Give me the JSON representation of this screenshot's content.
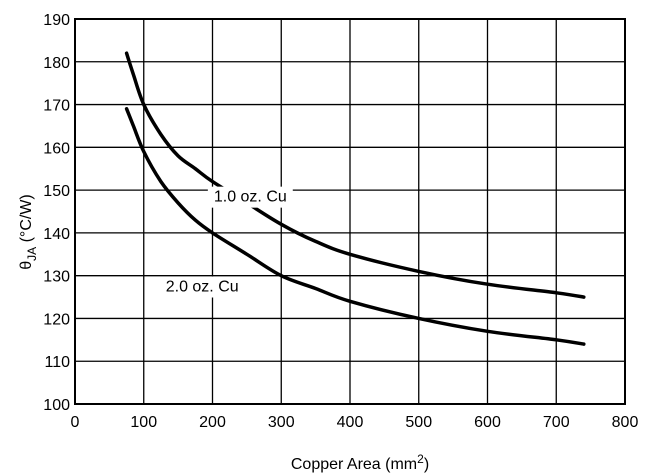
{
  "chart_data": {
    "type": "line",
    "xlabel": "Copper Area (mm",
    "xlabel_sup": "2",
    "xlabel_end": ")",
    "ylabel": "θ",
    "ylabel_sub": "JA",
    "ylabel_end": " (°C/W)",
    "xlim": [
      0,
      800
    ],
    "ylim": [
      100,
      190
    ],
    "xticks": [
      0,
      100,
      200,
      300,
      400,
      500,
      600,
      700,
      800
    ],
    "yticks": [
      100,
      110,
      120,
      130,
      140,
      150,
      160,
      170,
      180,
      190
    ],
    "grid": true,
    "legend": "none",
    "series": [
      {
        "name": "1.0 oz. Cu",
        "x": [
          75,
          85,
          100,
          125,
          150,
          175,
          200,
          250,
          300,
          350,
          400,
          500,
          600,
          700,
          740
        ],
        "values": [
          182,
          177,
          170,
          163,
          158,
          155,
          152,
          147,
          142,
          138,
          135,
          131,
          128,
          126,
          125
        ],
        "label_at": [
          255,
          148
        ]
      },
      {
        "name": "2.0 oz. Cu",
        "x": [
          75,
          85,
          100,
          125,
          150,
          175,
          200,
          250,
          300,
          350,
          400,
          500,
          600,
          700,
          740
        ],
        "values": [
          169,
          165,
          159,
          152,
          147,
          143,
          140,
          135,
          130,
          127,
          124,
          120,
          117,
          115,
          114
        ],
        "label_at": [
          185,
          127
        ]
      }
    ]
  }
}
